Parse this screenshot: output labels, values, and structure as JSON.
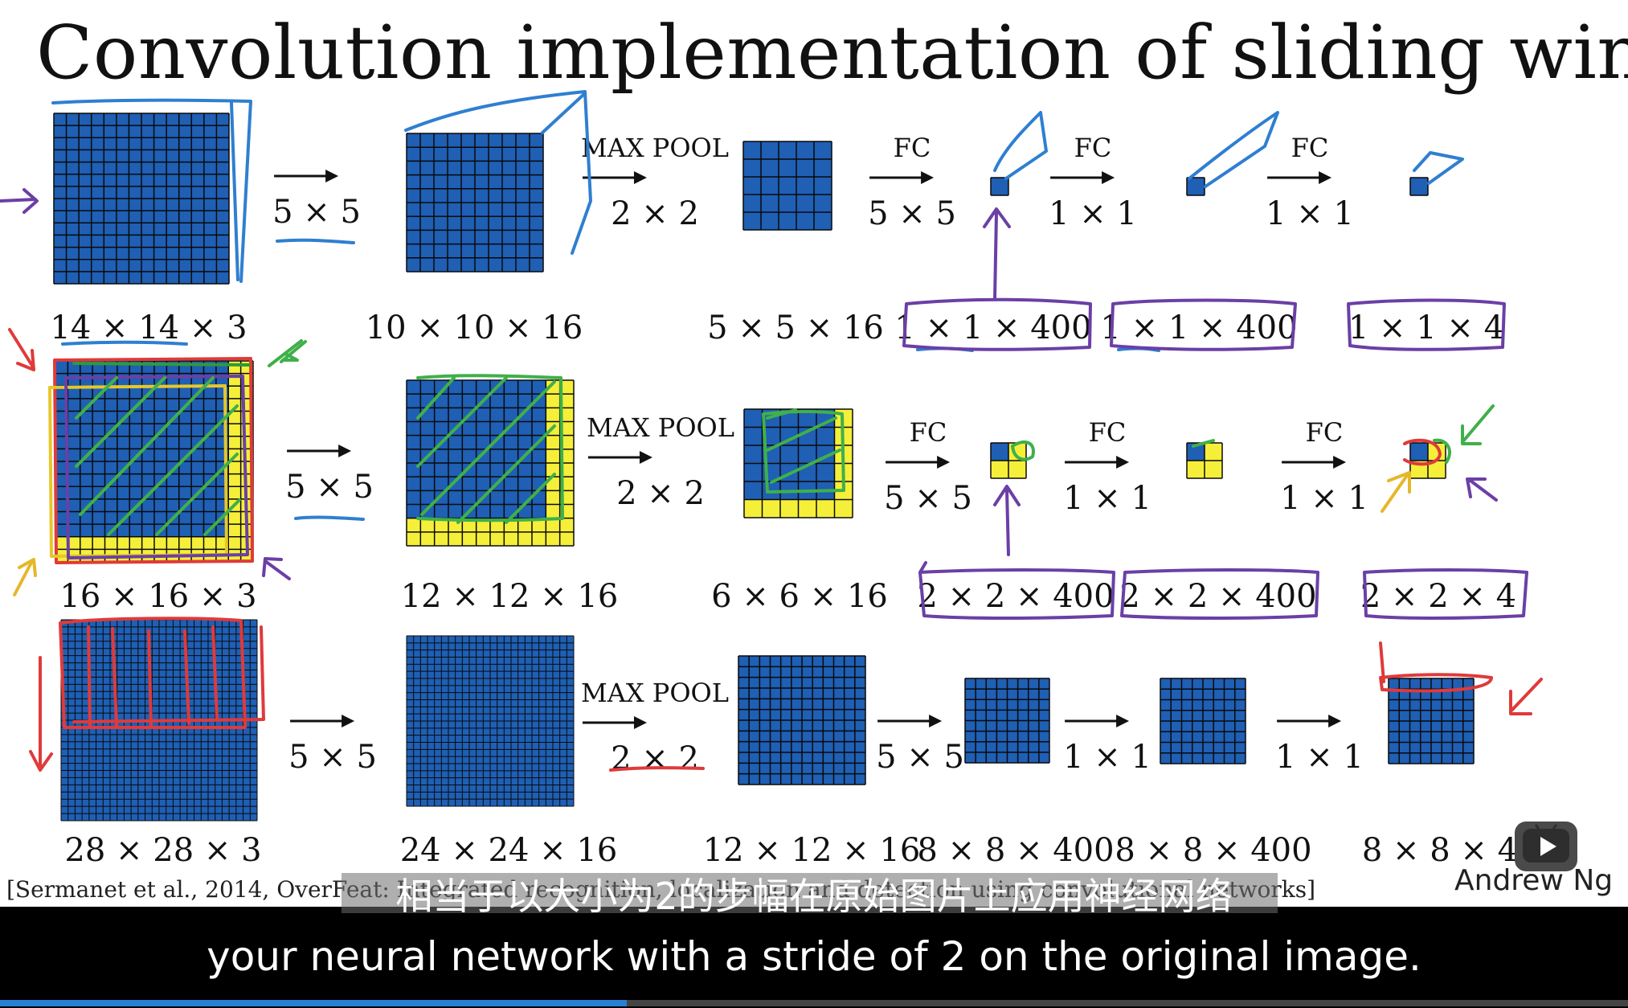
{
  "slide": {
    "title": "Convolution implementation of sliding windows",
    "citation": "[Sermanet et al., 2014, OverFeat: Integrated recognition, localization and detection using convolutional networks]",
    "author": "Andrew Ng",
    "colors": {
      "cell_blue": "#1f5fb4",
      "cell_yellow": "#f5ef3a",
      "grid_line": "#0a0a0a"
    },
    "rows": [
      {
        "volumes": [
          "14 × 14 × 3",
          "10 × 10 × 16",
          "5 × 5 × 16",
          "1 × 1 × 400",
          "1 × 1 × 400",
          "1 × 1 × 4"
        ],
        "ops": [
          {
            "top": "",
            "bottom": "5 × 5"
          },
          {
            "top": "MAX POOL",
            "bottom": "2 × 2"
          },
          {
            "top": "FC",
            "bottom": "5 × 5"
          },
          {
            "top": "FC",
            "bottom": "1 × 1"
          },
          {
            "top": "FC",
            "bottom": "1 × 1"
          }
        ]
      },
      {
        "volumes": [
          "16 × 16 × 3",
          "12 × 12 × 16",
          "6 × 6 × 16",
          "2 × 2 × 400",
          "2 × 2 × 400",
          "2 × 2 × 4"
        ],
        "ops": [
          {
            "top": "",
            "bottom": "5 × 5"
          },
          {
            "top": "MAX POOL",
            "bottom": "2 × 2"
          },
          {
            "top": "FC",
            "bottom": "5 × 5"
          },
          {
            "top": "FC",
            "bottom": "1 × 1"
          },
          {
            "top": "FC",
            "bottom": "1 × 1"
          }
        ]
      },
      {
        "volumes": [
          "28 × 28 × 3",
          "24 × 24 × 16",
          "12 × 12 × 16",
          "8 × 8 × 400",
          "8 × 8 × 400",
          "8 × 8 × 4"
        ],
        "ops": [
          {
            "top": "",
            "bottom": "5 × 5"
          },
          {
            "top": "MAX POOL",
            "bottom": "2 × 2"
          },
          {
            "top": "",
            "bottom": "5 × 5"
          },
          {
            "top": "",
            "bottom": "1 × 1"
          },
          {
            "top": "",
            "bottom": "1 × 1"
          }
        ]
      }
    ]
  },
  "subtitles": {
    "chinese": "相当于以大小为2的步幅在原始图片上应用神经网络",
    "english": "your neural network with a stride of 2 on the original image."
  },
  "player": {
    "progress_fraction": 0.385,
    "play_icon": "play-icon"
  }
}
